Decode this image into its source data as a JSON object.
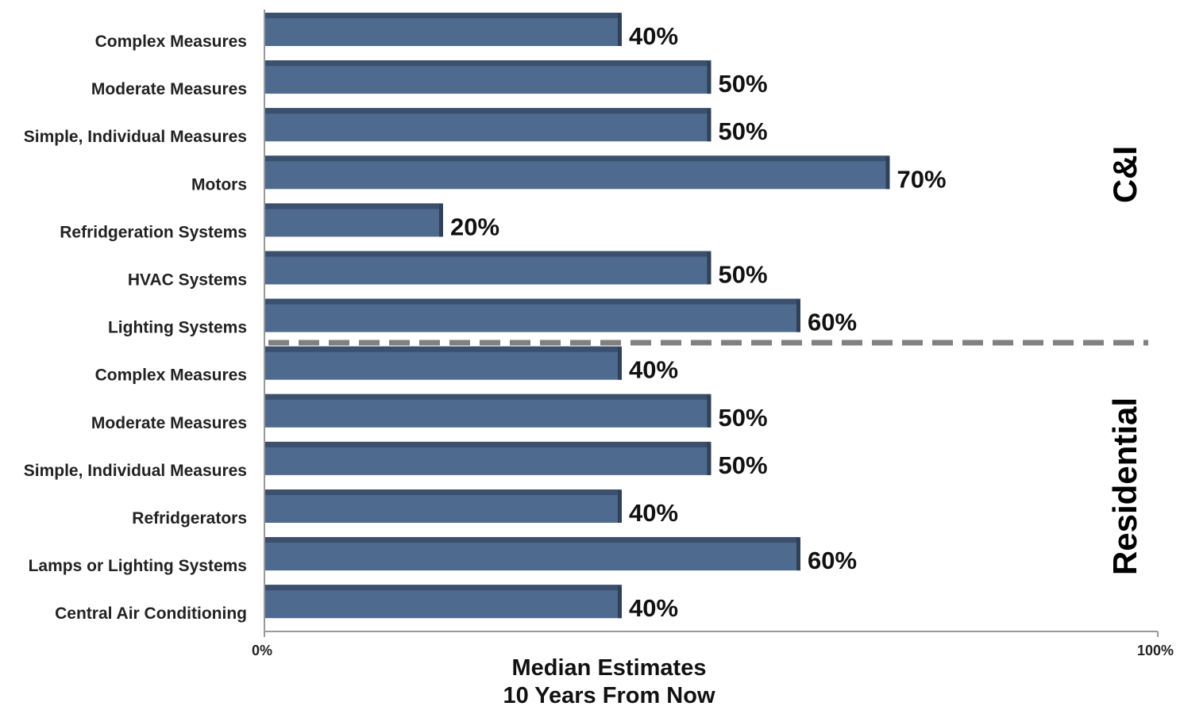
{
  "chart_data": {
    "type": "bar",
    "orientation": "horizontal",
    "categories": [
      "Complex Measures",
      "Moderate Measures",
      "Simple, Individual Measures",
      "Motors",
      "Refridgeration Systems",
      "HVAC Systems",
      "Lighting Systems",
      "Complex Measures",
      "Moderate Measures",
      "Simple, Individual Measures",
      "Refridgerators",
      "Lamps or Lighting Systems",
      "Central Air Conditioning"
    ],
    "values": [
      40,
      50,
      50,
      70,
      20,
      50,
      60,
      40,
      50,
      50,
      40,
      60,
      40
    ],
    "value_labels": [
      "40%",
      "50%",
      "50%",
      "70%",
      "20%",
      "50%",
      "60%",
      "40%",
      "50%",
      "50%",
      "40%",
      "60%",
      "40%"
    ],
    "groups": [
      {
        "label": "C&I",
        "start": 0,
        "end": 6
      },
      {
        "label": "Residential",
        "start": 7,
        "end": 12
      }
    ],
    "xlim": [
      0,
      100
    ],
    "x_ticks": [
      "0%",
      "100%"
    ],
    "xlabel_lines": [
      "Median Estimates",
      "10 Years From Now"
    ],
    "title": "",
    "grid": false,
    "colors": {
      "bar": "#4f6a8f",
      "bar_top": "#3b4f6e",
      "bar_side": "#2f4059",
      "divider": "#808080",
      "axis": "#999999"
    }
  }
}
